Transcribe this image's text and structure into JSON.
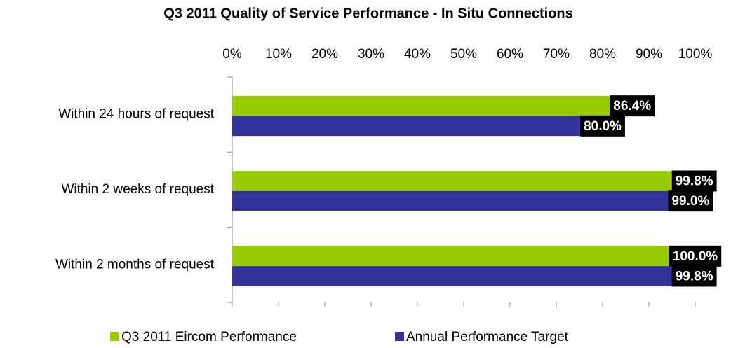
{
  "chart_data": {
    "type": "hbar",
    "title": "Q3 2011 Quality of Service Performance - In Situ Connections",
    "categories": [
      "Within 24 hours of request",
      "Within 2 weeks of request",
      "Within 2 months of request"
    ],
    "series": [
      {
        "name": "Q3 2011 Eircom Performance",
        "color": "#99cc00",
        "values": [
          86.4,
          99.8,
          100.0
        ],
        "value_labels": [
          "86.4%",
          "99.8%",
          "100.0%"
        ]
      },
      {
        "name": "Annual Performance Target",
        "color": "#333399",
        "values": [
          80.0,
          99.0,
          99.8
        ],
        "value_labels": [
          "80.0%",
          "99.0%",
          "99.8%"
        ]
      }
    ],
    "xlim": [
      0,
      100
    ],
    "xticks": [
      {
        "value": 0,
        "label": "0%"
      },
      {
        "value": 10,
        "label": "10%"
      },
      {
        "value": 20,
        "label": "20%"
      },
      {
        "value": 30,
        "label": "30%"
      },
      {
        "value": 40,
        "label": "40%"
      },
      {
        "value": 50,
        "label": "50%"
      },
      {
        "value": 60,
        "label": "60%"
      },
      {
        "value": 70,
        "label": "70%"
      },
      {
        "value": 80,
        "label": "80%"
      },
      {
        "value": 90,
        "label": "90%"
      },
      {
        "value": 100,
        "label": "100%"
      }
    ],
    "legend": "bottom"
  }
}
